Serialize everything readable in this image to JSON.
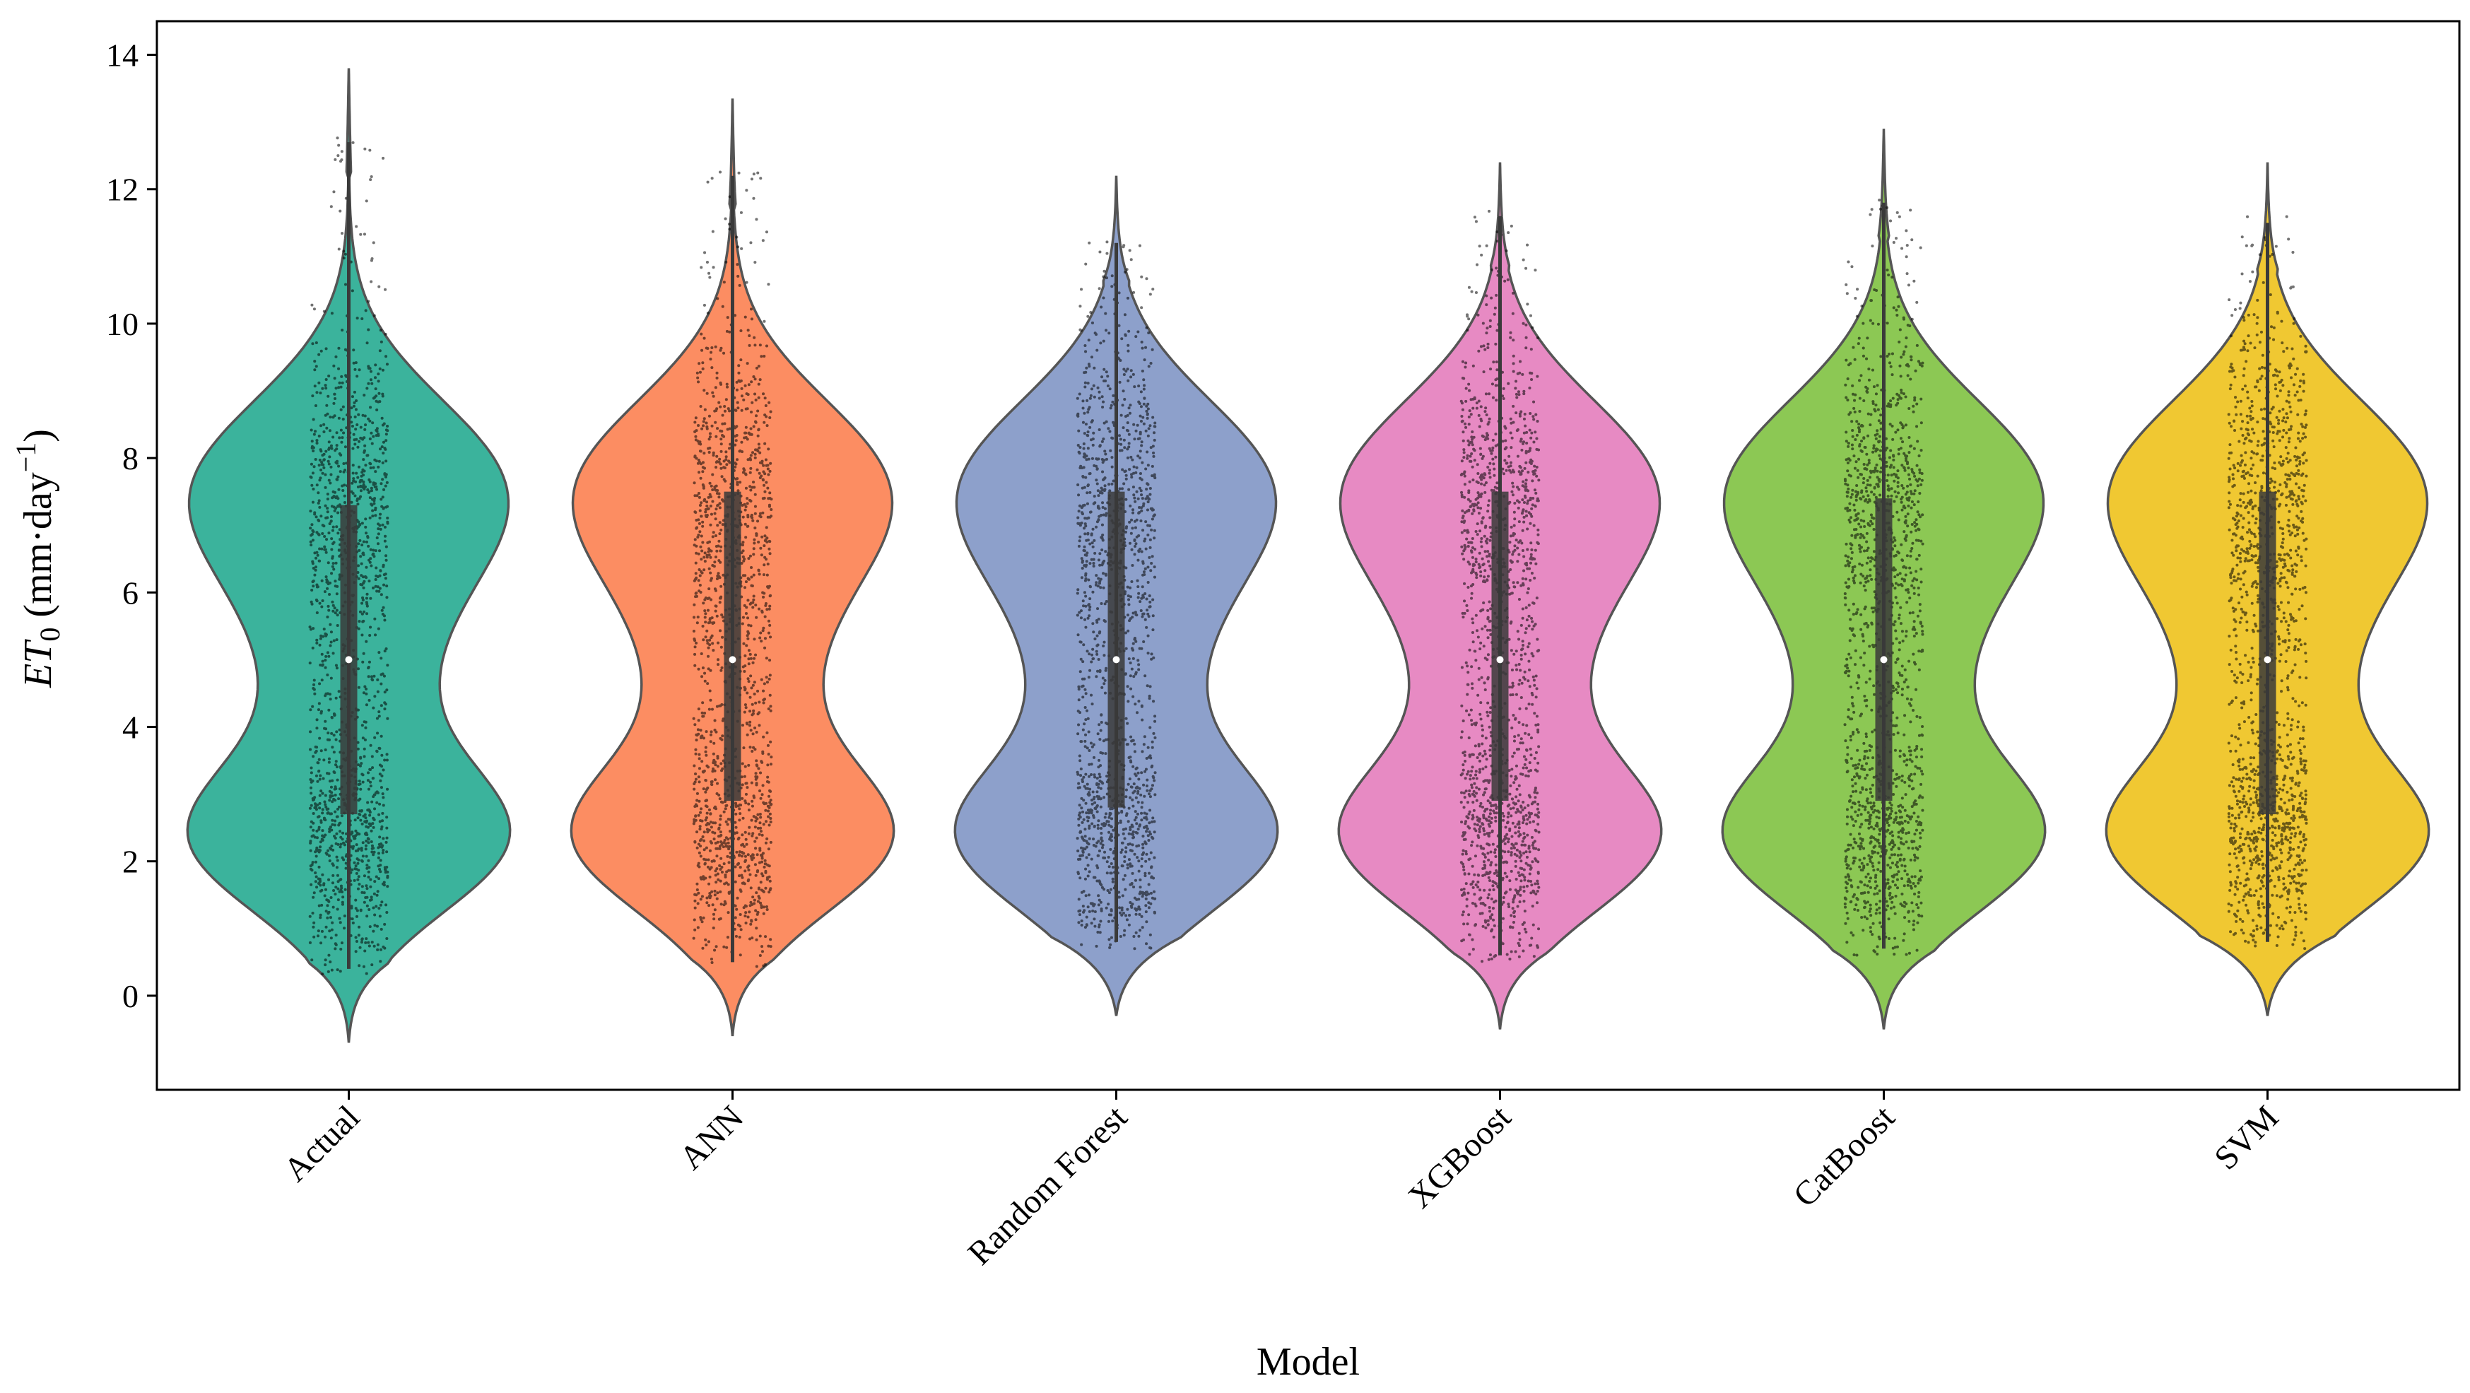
{
  "chart_data": {
    "type": "violin",
    "title": "",
    "xlabel": "Model",
    "ylabel": {
      "main": "ET",
      "sub": "0",
      "unit": "(mm·day",
      "sup": "−1",
      "close": ")"
    },
    "ylim": [
      -1.4,
      14.5
    ],
    "yticks": [
      0,
      2,
      4,
      6,
      8,
      10,
      12,
      14
    ],
    "grid": false,
    "legend": "none",
    "categories": [
      "Actual",
      "ANN",
      "Random Forest",
      "XGBoost",
      "CatBoost",
      "SVM"
    ],
    "series": [
      {
        "color": "#3bb39c",
        "min": -0.7,
        "max": 13.8,
        "q1": 2.7,
        "median": 5.0,
        "q3": 7.3,
        "whisker_low": 0.4,
        "whisker_high": 12.7,
        "max_half_width": 2.4
      },
      {
        "color": "#fc8d62",
        "min": -0.6,
        "max": 13.35,
        "q1": 2.9,
        "median": 5.0,
        "q3": 7.5,
        "whisker_low": 0.5,
        "whisker_high": 12.2,
        "max_half_width": 2.4
      },
      {
        "color": "#8da0cb",
        "min": -0.3,
        "max": 12.2,
        "q1": 2.8,
        "median": 5.0,
        "q3": 7.5,
        "whisker_low": 0.8,
        "whisker_high": 11.2,
        "max_half_width": 2.4
      },
      {
        "color": "#e78ac3",
        "min": -0.5,
        "max": 12.4,
        "q1": 2.9,
        "median": 5.0,
        "q3": 7.5,
        "whisker_low": 0.6,
        "whisker_high": 11.6,
        "max_half_width": 2.4
      },
      {
        "color": "#8cc854",
        "min": -0.5,
        "max": 12.9,
        "q1": 2.9,
        "median": 5.0,
        "q3": 7.4,
        "whisker_low": 0.7,
        "whisker_high": 11.8,
        "max_half_width": 2.4
      },
      {
        "color": "#f0c832",
        "min": -0.3,
        "max": 12.4,
        "q1": 2.7,
        "median": 5.0,
        "q3": 7.5,
        "whisker_low": 0.8,
        "whisker_high": 11.5,
        "max_half_width": 2.4
      }
    ]
  }
}
